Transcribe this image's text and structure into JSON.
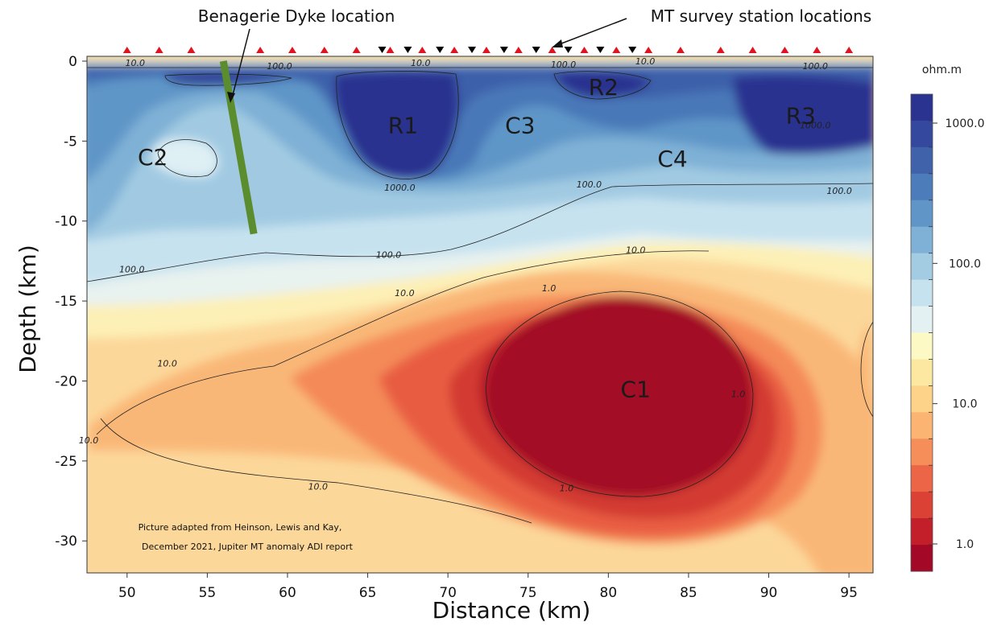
{
  "chart_data": {
    "type": "heatmap",
    "xlabel": "Distance (km)",
    "ylabel": "Depth (km)",
    "xlim": [
      47.5,
      96.5
    ],
    "ylim": [
      -32,
      0.3
    ],
    "x_ticks": [
      50,
      55,
      60,
      65,
      70,
      75,
      80,
      85,
      90,
      95
    ],
    "y_ticks": [
      0,
      -5,
      -10,
      -15,
      -20,
      -25,
      -30
    ],
    "colorbar": {
      "unit": "ohm.m",
      "scale": "log",
      "labels": [
        "1000.0",
        "100.0",
        "10.0",
        "1.0"
      ],
      "label_values": [
        1000,
        100,
        10,
        1
      ],
      "colors": [
        "#2b3390",
        "#34499e",
        "#3f62ab",
        "#4d7cba",
        "#6096c7",
        "#7fb1d6",
        "#a3cbe2",
        "#c6e2ef",
        "#e4f1f3",
        "#fcf9c4",
        "#fde8a2",
        "#fdd38a",
        "#fbb471",
        "#f68e59",
        "#ec6546",
        "#db4134",
        "#c21f2a",
        "#a30827"
      ]
    },
    "anomalies": [
      {
        "label": "R1",
        "x": 67.2,
        "y": -4.0
      },
      {
        "label": "R2",
        "x": 79.7,
        "y": -1.6
      },
      {
        "label": "R3",
        "x": 92.0,
        "y": -3.4
      },
      {
        "label": "C1",
        "x": 81.7,
        "y": -20.5
      },
      {
        "label": "C2",
        "x": 51.6,
        "y": -6.0
      },
      {
        "label": "C3",
        "x": 74.5,
        "y": -4.0
      },
      {
        "label": "C4",
        "x": 84.0,
        "y": -6.1
      }
    ],
    "contour_labels": [
      {
        "text": "10.0",
        "x": 50.5,
        "y": -0.3
      },
      {
        "text": "100.0",
        "x": 59.5,
        "y": -0.5
      },
      {
        "text": "10.0",
        "x": 68.3,
        "y": -0.3
      },
      {
        "text": "100.0",
        "x": 77.2,
        "y": -0.4
      },
      {
        "text": "10.0",
        "x": 82.3,
        "y": -0.2
      },
      {
        "text": "100.0",
        "x": 92.9,
        "y": -0.5
      },
      {
        "text": "1000.0",
        "x": 67.0,
        "y": -8.1
      },
      {
        "text": "1000.0",
        "x": 92.9,
        "y": -4.2
      },
      {
        "text": "100.0",
        "x": 78.8,
        "y": -7.9
      },
      {
        "text": "100.0",
        "x": 94.4,
        "y": -8.3
      },
      {
        "text": "100.0",
        "x": 50.3,
        "y": -13.2
      },
      {
        "text": "100.0",
        "x": 66.3,
        "y": -12.3
      },
      {
        "text": "10.0",
        "x": 81.7,
        "y": -12.0
      },
      {
        "text": "10.0",
        "x": 67.3,
        "y": -14.7
      },
      {
        "text": "1.0",
        "x": 76.3,
        "y": -14.4
      },
      {
        "text": "10.0",
        "x": 52.5,
        "y": -19.1
      },
      {
        "text": "1.0",
        "x": 88.1,
        "y": -21.0
      },
      {
        "text": "10.0",
        "x": 47.6,
        "y": -23.9
      },
      {
        "text": "10.0",
        "x": 61.9,
        "y": -26.8
      },
      {
        "text": "1.0",
        "x": 77.4,
        "y": -26.9
      }
    ],
    "mt_stations": {
      "red": [
        50,
        52,
        54,
        58.3,
        60.3,
        62.3,
        64.3,
        66.4,
        68.4,
        70.4,
        72.4,
        74.4,
        76.5,
        78.5,
        80.5,
        82.5,
        84.5,
        87.0,
        89.0,
        91.0,
        93.0,
        95.0
      ],
      "black": [
        65.9,
        67.5,
        69.5,
        71.5,
        73.5,
        75.5,
        77.5,
        79.5,
        81.5
      ]
    },
    "dyke": {
      "x_top": 56.0,
      "y_top": 0,
      "x_bottom": 57.9,
      "y_bottom": -10.8
    }
  },
  "annotations": {
    "dyke_label": "Benagerie Dyke location",
    "stations_label": "MT survey station locations",
    "credit_line1": "Picture adapted from Heinson, Lewis and Kay,",
    "credit_line2": "December 2021, Jupiter MT anomaly ADI  report"
  },
  "colors": {
    "dyke": "#5b8c2d",
    "station_red": "#e0141e",
    "station_black": "#000000"
  }
}
